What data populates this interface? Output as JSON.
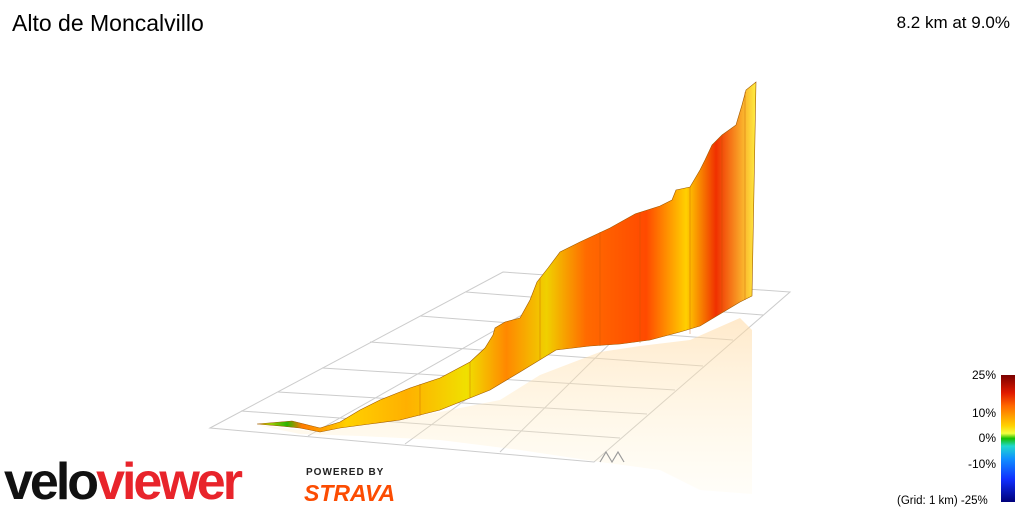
{
  "header": {
    "title": "Alto de Moncalvillo",
    "stats": "8.2 km at 9.0%"
  },
  "legend": {
    "ticks": [
      "25%",
      "10%",
      "0%",
      "-10%",
      "-25%"
    ],
    "grid_note": "(Grid: 1 km)"
  },
  "branding": {
    "logo_part1": "velo",
    "logo_part2": "viewer",
    "powered_by": "POWERED BY",
    "strava": "STRAVA"
  },
  "colors": {
    "velo": "#111111",
    "viewer": "#e8242b",
    "strava": "#fc4c02"
  }
}
